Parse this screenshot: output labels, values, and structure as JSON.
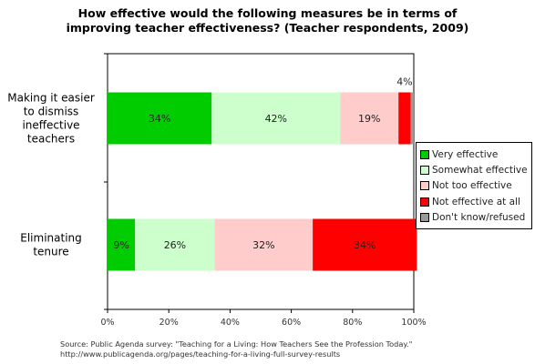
{
  "chart_data": {
    "type": "bar",
    "orientation": "horizontal",
    "stacked": true,
    "title": [
      "How effective would the following measures be in terms of",
      "improving teacher effectiveness? (Teacher respondents, 2009)"
    ],
    "categories": [
      [
        "Making it easier",
        "to dismiss",
        "ineffective",
        "teachers"
      ],
      [
        "Eliminating",
        "tenure"
      ]
    ],
    "series": [
      {
        "name": "Very effective",
        "color": "#00cc00",
        "values": [
          34,
          9
        ],
        "labels": [
          "34%",
          "9%"
        ]
      },
      {
        "name": "Somewhat effective",
        "color": "#ccffcc",
        "values": [
          42,
          26
        ],
        "labels": [
          "42%",
          "26%"
        ]
      },
      {
        "name": "Not too effective",
        "color": "#ffcccc",
        "values": [
          19,
          32
        ],
        "labels": [
          "19%",
          "32%"
        ]
      },
      {
        "name": "Not effective at all",
        "color": "#ff0000",
        "values": [
          4,
          34
        ],
        "labels": [
          "4%",
          "34%"
        ]
      },
      {
        "name": "Don't know/refused",
        "color": "#999999",
        "values": [
          1,
          0
        ],
        "labels": [
          "",
          ""
        ]
      }
    ],
    "xlim": [
      0,
      100
    ],
    "xticks": [
      "0%",
      "20%",
      "40%",
      "60%",
      "80%",
      "100%"
    ],
    "grid": false,
    "legend_position": "right"
  },
  "source": [
    "Source: Public Agenda survey: \"Teaching for a Living: How Teachers See the Profession Today.\"",
    "http://www.publicagenda.org/pages/teaching-for-a-living-full-survey-results"
  ]
}
